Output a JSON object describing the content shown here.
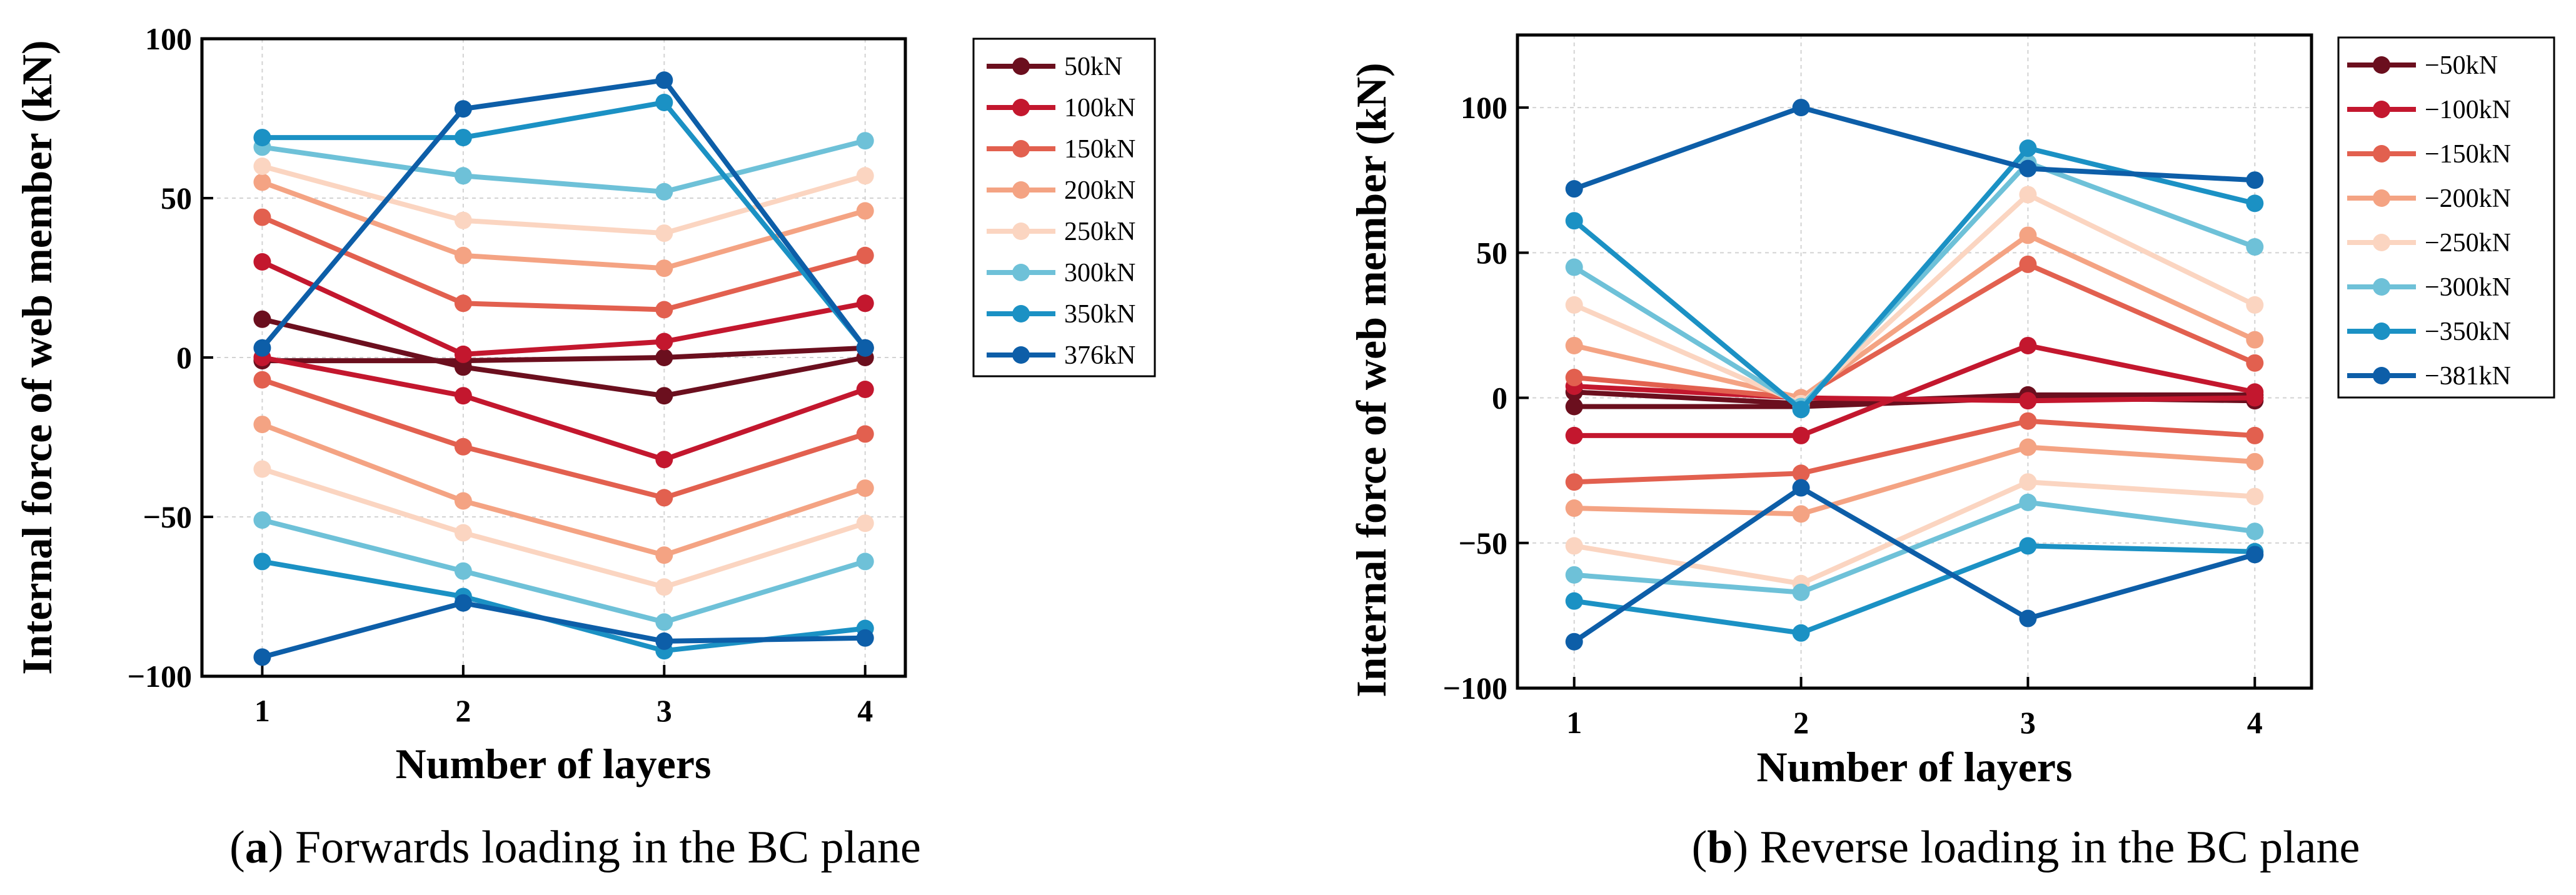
{
  "chart_data": [
    {
      "type": "line",
      "caption_letter": "a",
      "caption_text": " Forwards loading in the BC plane",
      "caption_open": "(",
      "caption_close": ")",
      "xlabel": "Number of layers",
      "ylabel": "Internal force of web member (kN)",
      "categories": [
        "1",
        "2",
        "3",
        "4"
      ],
      "x": [
        1,
        2,
        3,
        4
      ],
      "xlim": [
        0.7,
        4.2
      ],
      "ylim": [
        -100,
        100
      ],
      "yticks": [
        -100,
        -50,
        0,
        50,
        100
      ],
      "ytick_labels": [
        "−100",
        "−50",
        "0",
        "50",
        "100"
      ],
      "grid": true,
      "legend_position": "right, outside plot",
      "legend": [
        "50kN",
        "100kN",
        "150kN",
        "200kN",
        "250kN",
        "300kN",
        "350kN",
        "376kN"
      ],
      "series": [
        {
          "name": "50kN",
          "color": "#6b0f1e",
          "values": [
            12,
            -3,
            -12,
            0
          ]
        },
        {
          "name": "50kN",
          "color": "#6b0f1e",
          "values": [
            -1,
            -1,
            0,
            3
          ]
        },
        {
          "name": "100kN",
          "color": "#c3172e",
          "values": [
            30,
            1,
            5,
            17
          ]
        },
        {
          "name": "100kN",
          "color": "#c3172e",
          "values": [
            0,
            -12,
            -32,
            -10
          ]
        },
        {
          "name": "150kN",
          "color": "#e2604f",
          "values": [
            44,
            17,
            15,
            32
          ]
        },
        {
          "name": "150kN",
          "color": "#e2604f",
          "values": [
            -7,
            -28,
            -44,
            -24
          ]
        },
        {
          "name": "200kN",
          "color": "#f4a383",
          "values": [
            55,
            32,
            28,
            46
          ]
        },
        {
          "name": "200kN",
          "color": "#f4a383",
          "values": [
            -21,
            -45,
            -62,
            -41
          ]
        },
        {
          "name": "250kN",
          "color": "#fbd5c1",
          "values": [
            60,
            43,
            39,
            57
          ]
        },
        {
          "name": "250kN",
          "color": "#fbd5c1",
          "values": [
            -35,
            -55,
            -72,
            -52
          ]
        },
        {
          "name": "300kN",
          "color": "#6ec1d8",
          "values": [
            66,
            57,
            52,
            68
          ]
        },
        {
          "name": "300kN",
          "color": "#6ec1d8",
          "values": [
            -51,
            -67,
            -83,
            -64
          ]
        },
        {
          "name": "350kN",
          "color": "#1b91c4",
          "values": [
            69,
            69,
            80,
            3
          ]
        },
        {
          "name": "350kN",
          "color": "#1b91c4",
          "values": [
            -64,
            -75,
            -92,
            -85
          ]
        },
        {
          "name": "376kN",
          "color": "#0d5ea8",
          "values": [
            3,
            78,
            87,
            3
          ]
        },
        {
          "name": "376kN",
          "color": "#0d5ea8",
          "values": [
            -94,
            -77,
            -89,
            -88
          ]
        }
      ]
    },
    {
      "type": "line",
      "caption_letter": "b",
      "caption_text": " Reverse loading in the BC plane",
      "caption_open": "(",
      "caption_close": ")",
      "xlabel": "Number of layers",
      "ylabel": "Internal force of web member (kN)",
      "categories": [
        "1",
        "2",
        "3",
        "4"
      ],
      "x": [
        1,
        2,
        3,
        4
      ],
      "xlim": [
        0.75,
        4.25
      ],
      "ylim": [
        -100,
        125
      ],
      "yticks": [
        -100,
        -50,
        0,
        50,
        100
      ],
      "ytick_labels": [
        "−100",
        "−50",
        "0",
        "50",
        "100"
      ],
      "grid": true,
      "legend_position": "right, outside plot",
      "legend": [
        "−50kN",
        "−100kN",
        "−150kN",
        "−200kN",
        "−250kN",
        "−300kN",
        "−350kN",
        "−381kN"
      ],
      "series": [
        {
          "name": "−50kN",
          "color": "#6b0f1e",
          "values": [
            -3,
            -3,
            0,
            -1
          ]
        },
        {
          "name": "−50kN",
          "color": "#6b0f1e",
          "values": [
            2,
            -2,
            1,
            1
          ]
        },
        {
          "name": "−100kN",
          "color": "#c3172e",
          "values": [
            -13,
            -13,
            18,
            2
          ]
        },
        {
          "name": "−100kN",
          "color": "#c3172e",
          "values": [
            4,
            0,
            -1,
            0
          ]
        },
        {
          "name": "−150kN",
          "color": "#e2604f",
          "values": [
            7,
            0,
            46,
            12
          ]
        },
        {
          "name": "−150kN",
          "color": "#e2604f",
          "values": [
            -29,
            -26,
            -8,
            -13
          ]
        },
        {
          "name": "−200kN",
          "color": "#f4a383",
          "values": [
            18,
            0,
            56,
            20
          ]
        },
        {
          "name": "−200kN",
          "color": "#f4a383",
          "values": [
            -38,
            -40,
            -17,
            -22
          ]
        },
        {
          "name": "−250kN",
          "color": "#fbd5c1",
          "values": [
            32,
            -2,
            70,
            32
          ]
        },
        {
          "name": "−250kN",
          "color": "#fbd5c1",
          "values": [
            -51,
            -64,
            -29,
            -34
          ]
        },
        {
          "name": "−300kN",
          "color": "#6ec1d8",
          "values": [
            45,
            -3,
            81,
            52
          ]
        },
        {
          "name": "−300kN",
          "color": "#6ec1d8",
          "values": [
            -61,
            -67,
            -36,
            -46
          ]
        },
        {
          "name": "−350kN",
          "color": "#1b91c4",
          "values": [
            61,
            -4,
            86,
            67
          ]
        },
        {
          "name": "−350kN",
          "color": "#1b91c4",
          "values": [
            -70,
            -81,
            -51,
            -53
          ]
        },
        {
          "name": "−381kN",
          "color": "#0d5ea8",
          "values": [
            72,
            100,
            79,
            75
          ]
        },
        {
          "name": "−381kN",
          "color": "#0d5ea8",
          "values": [
            -84,
            -31,
            -76,
            -54
          ]
        }
      ]
    }
  ]
}
